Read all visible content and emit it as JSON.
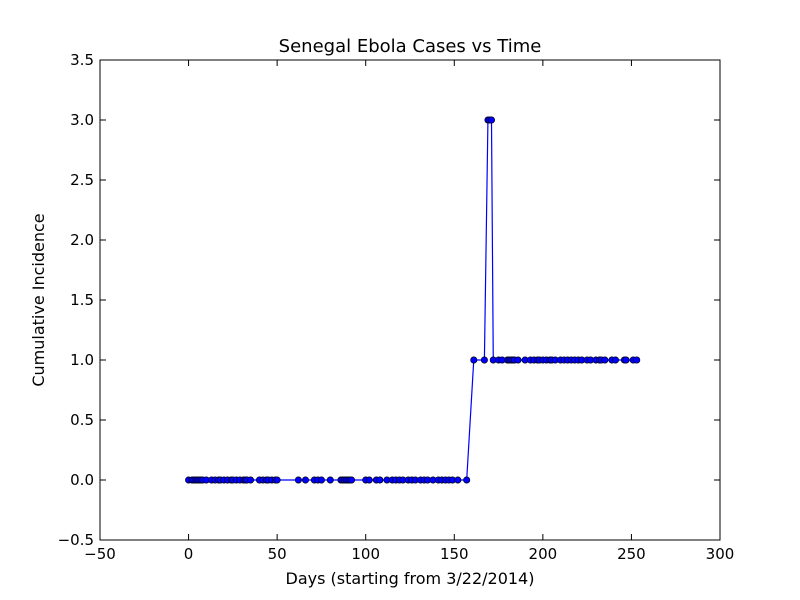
{
  "chart_data": {
    "type": "line",
    "title": "Senegal Ebola Cases vs Time",
    "xlabel": "Days (starting from 3/22/2014)",
    "ylabel": "Cumulative Incidence",
    "xlim": [
      -50,
      300
    ],
    "ylim": [
      -0.5,
      3.5
    ],
    "x_ticks": [
      -50,
      0,
      50,
      100,
      150,
      200,
      250,
      300
    ],
    "y_ticks": [
      -0.5,
      0.0,
      0.5,
      1.0,
      1.5,
      2.0,
      2.5,
      3.0,
      3.5
    ],
    "x_tick_labels": [
      "−50",
      "0",
      "50",
      "100",
      "150",
      "200",
      "250",
      "300"
    ],
    "y_tick_labels": [
      "−0.5",
      "0.0",
      "0.5",
      "1.0",
      "1.5",
      "2.0",
      "2.5",
      "3.0",
      "3.5"
    ],
    "grid": false,
    "marker": "circle",
    "color": "#0000ff",
    "series": [
      {
        "x": [
          0,
          2,
          3,
          4,
          5,
          6,
          7,
          8,
          10,
          13,
          15,
          17,
          18,
          20,
          22,
          24,
          25,
          27,
          29,
          31,
          32,
          33,
          35,
          40,
          42,
          44,
          45,
          47,
          49,
          50,
          62,
          66,
          71,
          73,
          75,
          80,
          86,
          87,
          88,
          89,
          90,
          91,
          92,
          100,
          102,
          106,
          108,
          112,
          115,
          117,
          119,
          121,
          124,
          126,
          128,
          131,
          133,
          135,
          138,
          141,
          143,
          145,
          147,
          149,
          152,
          157,
          161,
          167,
          169,
          170,
          171,
          172,
          175,
          177,
          180,
          181,
          182,
          183,
          184,
          186,
          190,
          193,
          195,
          197,
          198,
          200,
          202,
          204,
          205,
          207,
          210,
          212,
          214,
          216,
          218,
          220,
          222,
          225,
          227,
          230,
          232,
          233,
          235,
          239,
          241,
          246,
          247,
          251,
          253
        ],
        "y": [
          0,
          0,
          0,
          0,
          0,
          0,
          0,
          0,
          0,
          0,
          0,
          0,
          0,
          0,
          0,
          0,
          0,
          0,
          0,
          0,
          0,
          0,
          0,
          0,
          0,
          0,
          0,
          0,
          0,
          0,
          0,
          0,
          0,
          0,
          0,
          0,
          0,
          0,
          0,
          0,
          0,
          0,
          0,
          0,
          0,
          0,
          0,
          0,
          0,
          0,
          0,
          0,
          0,
          0,
          0,
          0,
          0,
          0,
          0,
          0,
          0,
          0,
          0,
          0,
          0,
          0,
          1,
          1,
          3,
          3,
          3,
          1,
          1,
          1,
          1,
          1,
          1,
          1,
          1,
          1,
          1,
          1,
          1,
          1,
          1,
          1,
          1,
          1,
          1,
          1,
          1,
          1,
          1,
          1,
          1,
          1,
          1,
          1,
          1,
          1,
          1,
          1,
          1,
          1,
          1,
          1,
          1,
          1,
          1
        ]
      }
    ]
  }
}
